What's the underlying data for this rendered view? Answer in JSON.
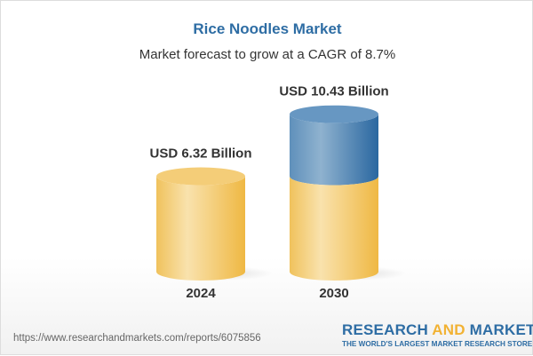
{
  "title": "Rice Noodles Market",
  "subtitle": "Market forecast to grow at a CAGR of 8.7%",
  "chart_data": {
    "type": "bar",
    "style": "3d-cylinder",
    "categories": [
      "2024",
      "2030"
    ],
    "values": [
      6.32,
      10.43
    ],
    "data_labels": [
      "USD 6.32 Billion",
      "USD 10.43 Billion"
    ],
    "unit": "USD Billion",
    "cagr": "8.7%",
    "colors": {
      "base": "#f2c661",
      "growth": "#4f86b5"
    },
    "grid": false
  },
  "footer": {
    "url": "https://www.researchandmarkets.com/reports/6075856",
    "logo_part1": "RESEARCH ",
    "logo_part2": "AND",
    "logo_part3": " MARKETS",
    "tagline": "THE WORLD'S LARGEST MARKET RESEARCH STORE"
  }
}
